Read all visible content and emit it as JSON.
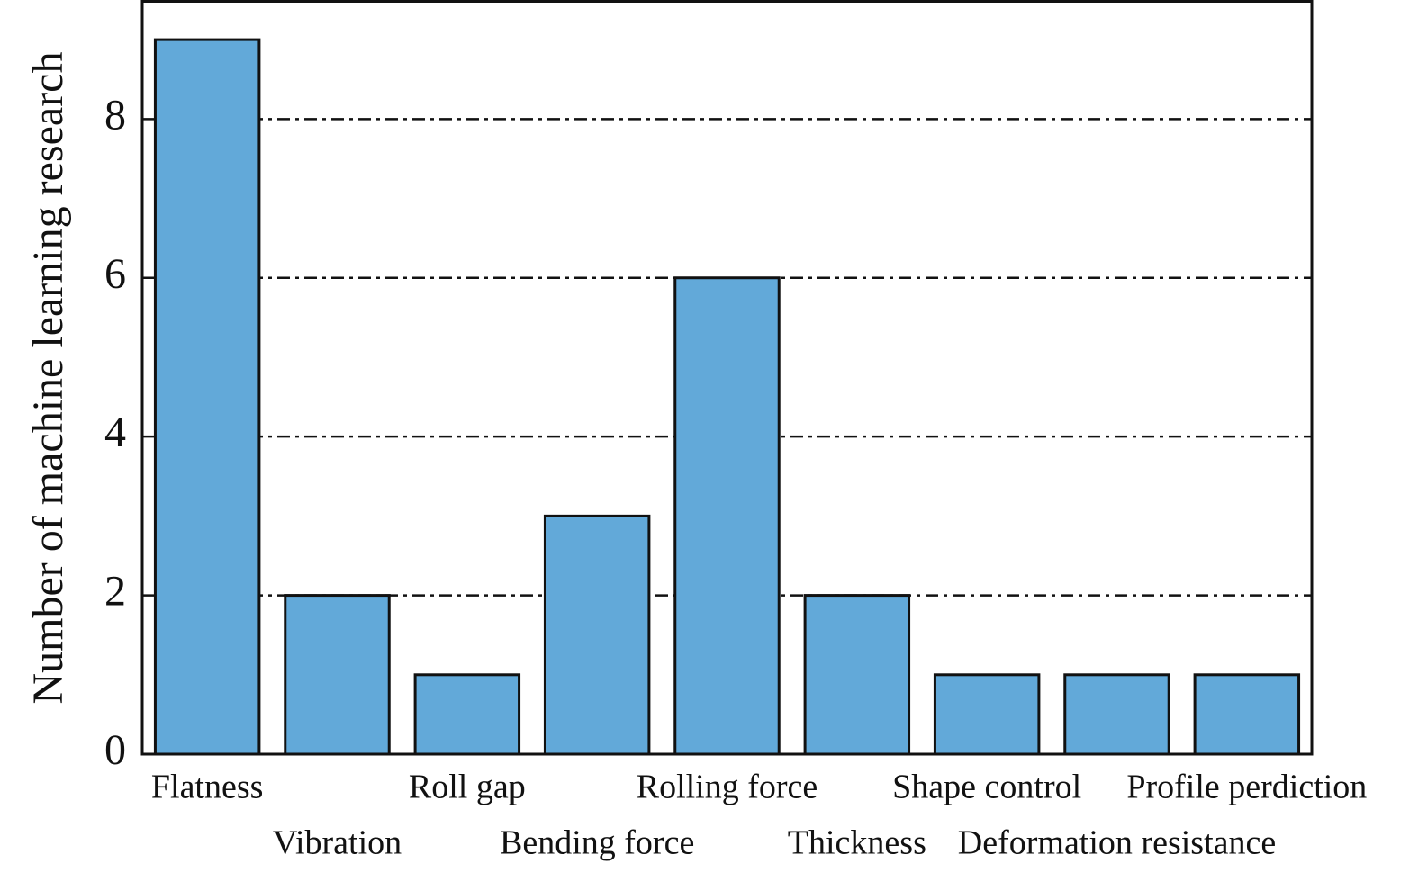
{
  "chart_data": {
    "type": "bar",
    "y_label": "Number of machine learning research",
    "categories": [
      "Flatness",
      "Vibration",
      "Roll gap",
      "Bending force",
      "Rolling force",
      "Thickness",
      "Shape control",
      "Deformation resistance",
      "Profile perdiction"
    ],
    "values": [
      9,
      2,
      1,
      3,
      6,
      2,
      1,
      1,
      1
    ],
    "color": "#62a9d9",
    "ylim": [
      0,
      9.5
    ],
    "yticks": [
      0,
      2,
      4,
      6,
      8
    ],
    "grid": true
  }
}
